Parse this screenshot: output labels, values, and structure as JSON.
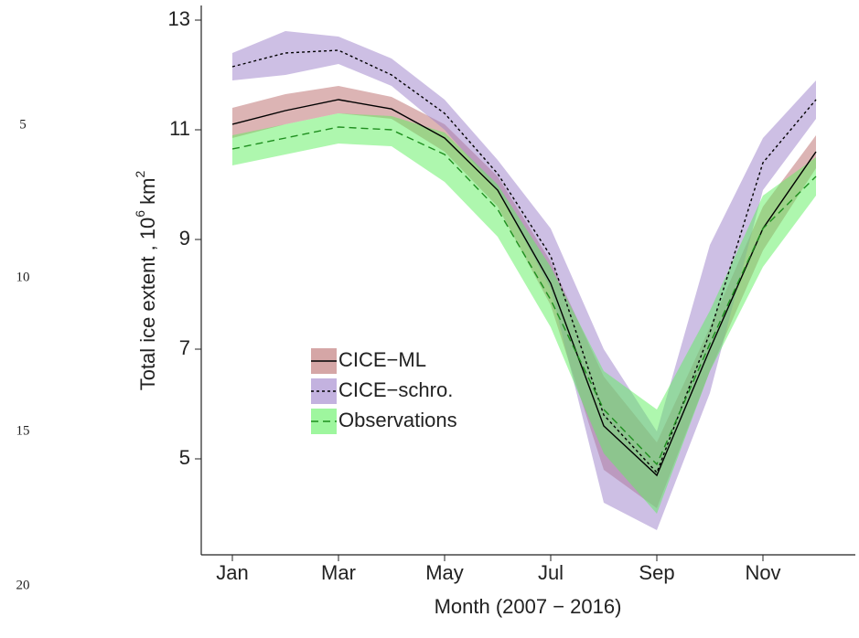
{
  "margin_line_numbers": [
    5,
    10,
    15,
    20
  ],
  "chart_data": {
    "type": "band-line",
    "x_label": "Month (2007 − 2016)",
    "y_label": [
      "Total ice extent , 10",
      "6",
      " km",
      "2"
    ],
    "categories": [
      "Jan",
      null,
      "Mar",
      null,
      "May",
      null,
      "Jul",
      null,
      "Sep",
      null,
      "Nov",
      null
    ],
    "ylim": [
      3.25,
      13.25
    ],
    "yticks": [
      5,
      7,
      9,
      11,
      13
    ],
    "legend": "left",
    "series": [
      {
        "name": "CICE−ML",
        "color": "#b96a6a",
        "line_color": "#000000",
        "dash": "solid",
        "values": [
          11.1,
          11.35,
          11.55,
          11.38,
          10.85,
          9.9,
          8.2,
          5.6,
          4.7,
          7.0,
          9.2,
          10.6
        ],
        "lower": [
          10.85,
          11.1,
          11.3,
          11.2,
          10.6,
          9.6,
          7.8,
          4.8,
          4.1,
          6.6,
          8.8,
          10.3
        ],
        "upper": [
          11.4,
          11.65,
          11.8,
          11.6,
          11.1,
          10.15,
          8.6,
          6.5,
          5.3,
          7.4,
          9.6,
          10.9
        ]
      },
      {
        "name": "CICE−schro.",
        "color": "#9b7fc9",
        "line_color": "#000000",
        "dash": "dotted",
        "values": [
          12.15,
          12.4,
          12.45,
          12.0,
          11.3,
          10.2,
          8.7,
          5.8,
          4.75,
          7.3,
          10.4,
          11.55
        ],
        "lower": [
          11.9,
          12.0,
          12.2,
          11.8,
          11.0,
          9.9,
          8.1,
          4.2,
          3.7,
          6.2,
          9.9,
          11.2
        ],
        "upper": [
          12.4,
          12.8,
          12.7,
          12.3,
          11.55,
          10.45,
          9.2,
          7.0,
          5.5,
          8.9,
          10.85,
          11.9
        ]
      },
      {
        "name": "Observations",
        "color": "#5ef05e",
        "line_color": "#1f8f1f",
        "dash": "dashed",
        "values": [
          10.65,
          10.85,
          11.05,
          11.0,
          10.55,
          9.55,
          7.9,
          5.9,
          4.9,
          7.1,
          9.2,
          10.15
        ],
        "lower": [
          10.35,
          10.55,
          10.75,
          10.7,
          10.05,
          9.05,
          7.4,
          5.1,
          4.0,
          6.6,
          8.5,
          9.8
        ],
        "upper": [
          10.9,
          11.1,
          11.3,
          11.25,
          10.95,
          10.0,
          8.5,
          6.6,
          5.9,
          7.7,
          9.8,
          10.5
        ]
      }
    ]
  }
}
